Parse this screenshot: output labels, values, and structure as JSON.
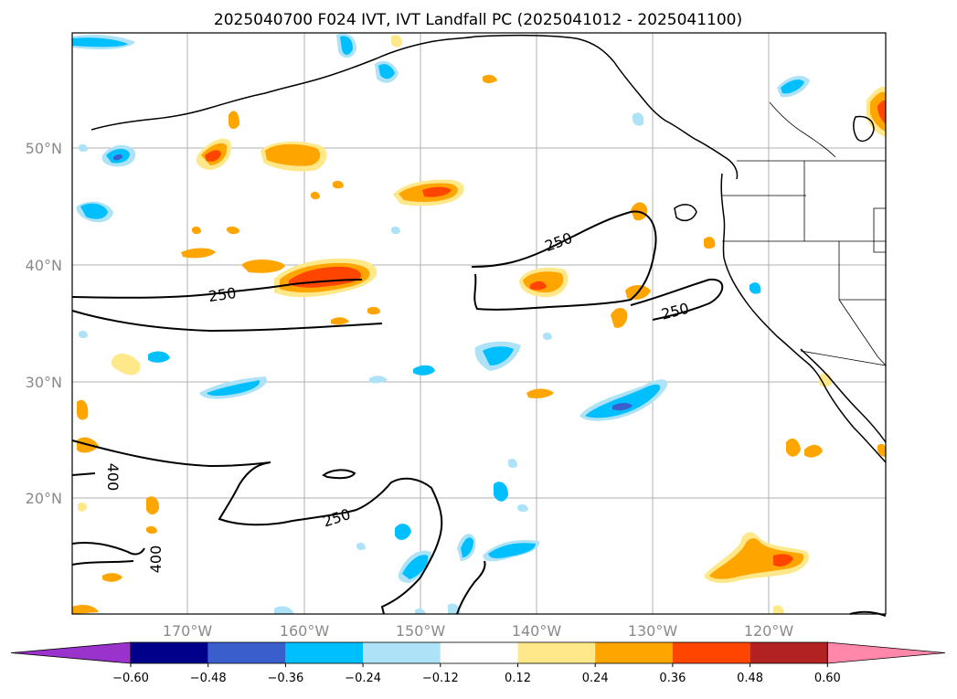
{
  "title": "2025040700 F024 IVT, IVT Landfall PC (2025041012 - 2025041100)",
  "lat_labels": [
    "50°N",
    "40°N",
    "30°N",
    "20°N"
  ],
  "lon_labels": [
    "170°W",
    "160°W",
    "150°W",
    "140°W",
    "130°W",
    "120°W"
  ],
  "contour_labels": [
    "250",
    "250",
    "250",
    "250",
    "400",
    "400"
  ],
  "colorbar": {
    "ticks": [
      "−0.60",
      "−0.48",
      "−0.36",
      "−0.24",
      "−0.12",
      "0.12",
      "0.24",
      "0.36",
      "0.48",
      "0.60"
    ],
    "colors": [
      "#9933cc",
      "#00008b",
      "#3a5fcd",
      "#00bfff",
      "#aee3f7",
      "#ffffff",
      "#ffe88a",
      "#ffa500",
      "#ff4500",
      "#b22222",
      "#ff88aa"
    ]
  },
  "colors": {
    "positive_light": "#ffe88a",
    "positive_mid": "#ffa500",
    "positive_strong": "#ff4500",
    "negative_light": "#aee3f7",
    "negative_mid": "#00bfff",
    "negative_strong": "#3a5fcd",
    "gridline": "#b0b0b0",
    "coastline": "#000000"
  }
}
